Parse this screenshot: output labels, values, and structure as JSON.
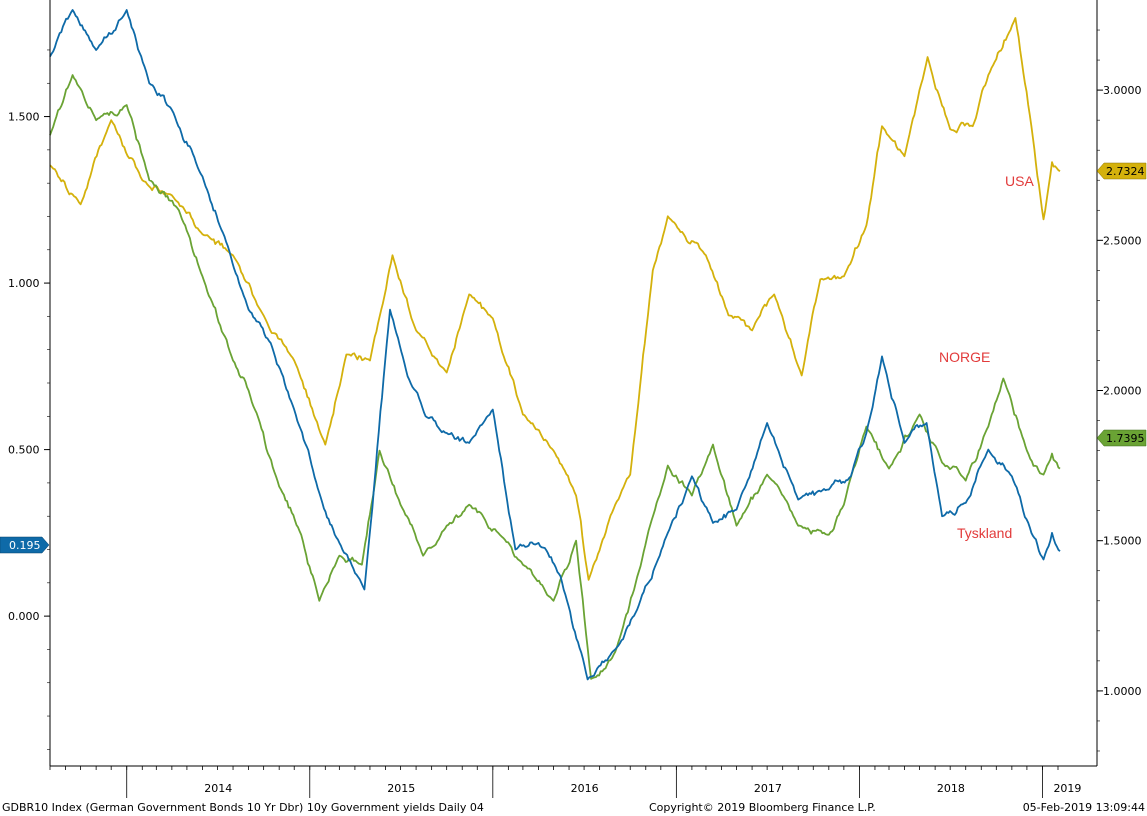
{
  "chart_data": {
    "type": "line",
    "x_axis": {
      "year_labels": [
        "2014",
        "2015",
        "2016",
        "2017",
        "2018",
        "2019"
      ],
      "range": [
        "2013-08-01",
        "2019-02-05"
      ]
    },
    "left_axis": {
      "ylim": [
        -0.45,
        1.85
      ],
      "ticks": [
        1.5,
        1.0,
        0.5,
        0.0
      ],
      "tick_labels": [
        "1.500",
        "1.000",
        "0.500",
        "0.000"
      ]
    },
    "right_axis": {
      "ylim": [
        0.75,
        3.3
      ],
      "ticks": [
        3.0,
        2.5,
        2.0,
        1.5,
        1.0
      ],
      "tick_labels": [
        "3.0000",
        "2.5000",
        "2.0000",
        "1.5000",
        "1.0000"
      ]
    },
    "grid": false,
    "series": [
      {
        "name": "USA",
        "axis": "right",
        "color": "#d4b10c",
        "last_value_label": "2.7324",
        "points": [
          [
            "2013-08-01",
            2.75
          ],
          [
            "2013-10-01",
            2.62
          ],
          [
            "2013-12-01",
            2.9
          ],
          [
            "2014-02-01",
            2.7
          ],
          [
            "2014-04-01",
            2.65
          ],
          [
            "2014-06-01",
            2.52
          ],
          [
            "2014-08-01",
            2.45
          ],
          [
            "2014-10-01",
            2.25
          ],
          [
            "2014-12-01",
            2.1
          ],
          [
            "2015-02-01",
            1.82
          ],
          [
            "2015-03-15",
            2.12
          ],
          [
            "2015-05-01",
            2.1
          ],
          [
            "2015-06-15",
            2.45
          ],
          [
            "2015-08-01",
            2.2
          ],
          [
            "2015-10-01",
            2.06
          ],
          [
            "2015-11-15",
            2.32
          ],
          [
            "2016-01-01",
            2.24
          ],
          [
            "2016-03-01",
            1.92
          ],
          [
            "2016-05-01",
            1.8
          ],
          [
            "2016-06-15",
            1.65
          ],
          [
            "2016-07-10",
            1.37
          ],
          [
            "2016-09-01",
            1.62
          ],
          [
            "2016-10-01",
            1.72
          ],
          [
            "2016-11-15",
            2.4
          ],
          [
            "2016-12-15",
            2.58
          ],
          [
            "2017-03-01",
            2.45
          ],
          [
            "2017-04-15",
            2.25
          ],
          [
            "2017-06-01",
            2.2
          ],
          [
            "2017-07-15",
            2.32
          ],
          [
            "2017-09-08",
            2.05
          ],
          [
            "2017-10-15",
            2.37
          ],
          [
            "2017-12-01",
            2.38
          ],
          [
            "2018-01-15",
            2.55
          ],
          [
            "2018-02-15",
            2.88
          ],
          [
            "2018-04-01",
            2.78
          ],
          [
            "2018-05-17",
            3.11
          ],
          [
            "2018-07-01",
            2.87
          ],
          [
            "2018-08-15",
            2.88
          ],
          [
            "2018-09-15",
            3.05
          ],
          [
            "2018-11-08",
            3.24
          ],
          [
            "2018-12-10",
            2.88
          ],
          [
            "2019-01-03",
            2.57
          ],
          [
            "2019-01-20",
            2.76
          ],
          [
            "2019-02-05",
            2.73
          ]
        ]
      },
      {
        "name": "NORGE",
        "axis": "right",
        "color": "#6aa334",
        "last_value_label": "1.7395",
        "points": [
          [
            "2013-08-01",
            2.85
          ],
          [
            "2013-09-15",
            3.05
          ],
          [
            "2013-11-01",
            2.9
          ],
          [
            "2014-01-01",
            2.95
          ],
          [
            "2014-02-15",
            2.7
          ],
          [
            "2014-04-15",
            2.6
          ],
          [
            "2014-06-01",
            2.38
          ],
          [
            "2014-08-01",
            2.1
          ],
          [
            "2014-09-01",
            2.0
          ],
          [
            "2014-11-01",
            1.68
          ],
          [
            "2014-12-15",
            1.52
          ],
          [
            "2015-01-20",
            1.3
          ],
          [
            "2015-03-01",
            1.45
          ],
          [
            "2015-04-15",
            1.42
          ],
          [
            "2015-05-20",
            1.8
          ],
          [
            "2015-07-01",
            1.62
          ],
          [
            "2015-08-15",
            1.45
          ],
          [
            "2015-10-01",
            1.55
          ],
          [
            "2015-11-15",
            1.62
          ],
          [
            "2016-01-15",
            1.52
          ],
          [
            "2016-03-01",
            1.42
          ],
          [
            "2016-05-01",
            1.3
          ],
          [
            "2016-06-15",
            1.5
          ],
          [
            "2016-07-15",
            1.04
          ],
          [
            "2016-09-01",
            1.13
          ],
          [
            "2016-10-15",
            1.38
          ],
          [
            "2016-12-15",
            1.75
          ],
          [
            "2017-02-01",
            1.65
          ],
          [
            "2017-03-15",
            1.82
          ],
          [
            "2017-05-01",
            1.55
          ],
          [
            "2017-07-01",
            1.72
          ],
          [
            "2017-09-01",
            1.55
          ],
          [
            "2017-11-01",
            1.52
          ],
          [
            "2017-12-01",
            1.62
          ],
          [
            "2018-01-15",
            1.88
          ],
          [
            "2018-03-01",
            1.74
          ],
          [
            "2018-05-01",
            1.92
          ],
          [
            "2018-06-15",
            1.76
          ],
          [
            "2018-08-01",
            1.7
          ],
          [
            "2018-09-15",
            1.88
          ],
          [
            "2018-10-15",
            2.04
          ],
          [
            "2018-12-01",
            1.8
          ],
          [
            "2019-01-03",
            1.72
          ],
          [
            "2019-01-20",
            1.79
          ],
          [
            "2019-02-05",
            1.74
          ]
        ]
      },
      {
        "name": "Tyskland",
        "axis": "left",
        "color": "#0e6aa8",
        "last_value_label": "0.195",
        "points": [
          [
            "2013-08-01",
            1.68
          ],
          [
            "2013-09-15",
            1.82
          ],
          [
            "2013-11-01",
            1.7
          ],
          [
            "2014-01-01",
            1.82
          ],
          [
            "2014-02-15",
            1.6
          ],
          [
            "2014-04-01",
            1.52
          ],
          [
            "2014-06-01",
            1.32
          ],
          [
            "2014-07-15",
            1.14
          ],
          [
            "2014-09-01",
            0.92
          ],
          [
            "2014-10-15",
            0.82
          ],
          [
            "2014-12-01",
            0.62
          ],
          [
            "2015-01-20",
            0.37
          ],
          [
            "2015-03-01",
            0.22
          ],
          [
            "2015-04-20",
            0.08
          ],
          [
            "2015-06-10",
            0.92
          ],
          [
            "2015-07-15",
            0.72
          ],
          [
            "2015-08-20",
            0.6
          ],
          [
            "2015-10-01",
            0.55
          ],
          [
            "2015-11-15",
            0.52
          ],
          [
            "2016-01-01",
            0.62
          ],
          [
            "2016-02-15",
            0.2
          ],
          [
            "2016-04-01",
            0.22
          ],
          [
            "2016-05-15",
            0.12
          ],
          [
            "2016-07-08",
            -0.19
          ],
          [
            "2016-09-01",
            -0.1
          ],
          [
            "2016-10-15",
            0.02
          ],
          [
            "2016-12-15",
            0.25
          ],
          [
            "2017-02-01",
            0.42
          ],
          [
            "2017-03-15",
            0.28
          ],
          [
            "2017-05-01",
            0.32
          ],
          [
            "2017-07-01",
            0.58
          ],
          [
            "2017-09-01",
            0.35
          ],
          [
            "2017-11-01",
            0.38
          ],
          [
            "2017-12-15",
            0.42
          ],
          [
            "2018-01-15",
            0.55
          ],
          [
            "2018-02-15",
            0.78
          ],
          [
            "2018-04-01",
            0.52
          ],
          [
            "2018-05-15",
            0.58
          ],
          [
            "2018-06-15",
            0.3
          ],
          [
            "2018-08-01",
            0.34
          ],
          [
            "2018-09-15",
            0.5
          ],
          [
            "2018-11-01",
            0.42
          ],
          [
            "2018-12-10",
            0.25
          ],
          [
            "2019-01-03",
            0.17
          ],
          [
            "2019-01-20",
            0.25
          ],
          [
            "2019-02-05",
            0.195
          ]
        ]
      }
    ],
    "annotations": [
      "USA",
      "NORGE",
      "Tyskland"
    ]
  },
  "footer": {
    "left": "GDBR10 Index (German Government Bonds 10 Yr Dbr) 10y Government yields  Daily 04",
    "center": "Copyright© 2019 Bloomberg Finance L.P.",
    "right": "05-Feb-2019 13:09:44"
  }
}
